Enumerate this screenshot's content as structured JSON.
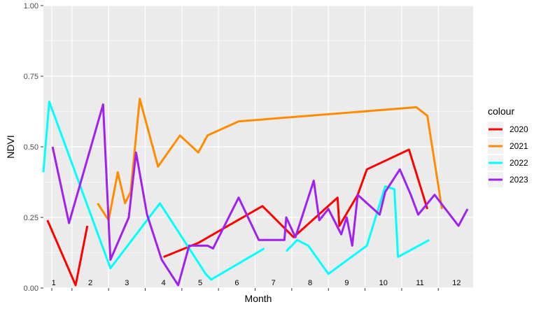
{
  "chart_data": {
    "type": "line",
    "xlabel": "Month",
    "ylabel": "NDVI",
    "ylim": [
      0,
      1
    ],
    "xlim": [
      0.72,
      12.45
    ],
    "yticks": [
      "0.00",
      "0.25",
      "0.50",
      "0.75",
      "1.00"
    ],
    "ytick_values": [
      0,
      0.25,
      0.5,
      0.75,
      1
    ],
    "month_labels": [
      "1",
      "2",
      "3",
      "4",
      "5",
      "6",
      "7",
      "8",
      "9",
      "10",
      "11",
      "12"
    ],
    "grid": true,
    "legend_title": "colour",
    "legend_position": "right",
    "series": [
      {
        "name": "2020",
        "color": "#ff0000",
        "segments": [
          [
            [
              0.83,
              0.24
            ],
            [
              1.6,
              0.01
            ],
            [
              1.92,
              0.22
            ]
          ],
          [
            [
              4.0,
              0.11
            ],
            [
              4.95,
              0.16
            ],
            [
              6.7,
              0.29
            ],
            [
              7.55,
              0.18
            ],
            [
              8.75,
              0.32
            ],
            [
              8.8,
              0.22
            ],
            [
              9.3,
              0.33
            ],
            [
              9.55,
              0.42
            ],
            [
              10.7,
              0.49
            ],
            [
              11.2,
              0.28
            ]
          ]
        ]
      },
      {
        "name": "2021",
        "color": "#ff8c00",
        "segments": [
          [
            [
              2.2,
              0.3
            ],
            [
              2.5,
              0.24
            ],
            [
              2.75,
              0.41
            ],
            [
              2.95,
              0.3
            ],
            [
              3.1,
              0.34
            ],
            [
              3.35,
              0.67
            ],
            [
              3.85,
              0.43
            ],
            [
              4.45,
              0.54
            ],
            [
              4.95,
              0.48
            ],
            [
              5.2,
              0.54
            ],
            [
              6.05,
              0.59
            ],
            [
              10.9,
              0.64
            ],
            [
              11.2,
              0.61
            ],
            [
              11.6,
              0.28
            ]
          ]
        ]
      },
      {
        "name": "2022",
        "color": "#00ffff",
        "segments": [
          [
            [
              0.72,
              0.41
            ],
            [
              0.88,
              0.66
            ],
            [
              2.55,
              0.07
            ],
            [
              3.9,
              0.3
            ],
            [
              5.15,
              0.05
            ],
            [
              5.3,
              0.03
            ],
            [
              6.75,
              0.14
            ]
          ],
          [
            [
              7.35,
              0.13
            ],
            [
              7.65,
              0.17
            ],
            [
              7.95,
              0.15
            ],
            [
              8.5,
              0.05
            ],
            [
              9.55,
              0.15
            ],
            [
              10.05,
              0.36
            ],
            [
              10.3,
              0.35
            ],
            [
              10.4,
              0.11
            ],
            [
              11.25,
              0.17
            ]
          ]
        ]
      },
      {
        "name": "2023",
        "color": "#a020f0",
        "segments": [
          [
            [
              0.97,
              0.5
            ],
            [
              1.42,
              0.23
            ],
            [
              2.35,
              0.65
            ],
            [
              2.55,
              0.1
            ],
            [
              3.05,
              0.25
            ],
            [
              3.25,
              0.48
            ],
            [
              3.55,
              0.26
            ],
            [
              3.95,
              0.1
            ],
            [
              4.4,
              0.01
            ],
            [
              4.7,
              0.15
            ],
            [
              5.2,
              0.15
            ],
            [
              5.35,
              0.14
            ],
            [
              6.05,
              0.32
            ],
            [
              6.6,
              0.17
            ],
            [
              7.3,
              0.17
            ],
            [
              7.35,
              0.25
            ],
            [
              7.6,
              0.18
            ],
            [
              8.1,
              0.38
            ],
            [
              8.25,
              0.24
            ],
            [
              8.5,
              0.28
            ],
            [
              8.85,
              0.19
            ],
            [
              9.0,
              0.25
            ],
            [
              9.15,
              0.15
            ],
            [
              9.3,
              0.33
            ],
            [
              9.9,
              0.26
            ],
            [
              10.05,
              0.34
            ],
            [
              10.45,
              0.42
            ],
            [
              10.75,
              0.33
            ],
            [
              10.95,
              0.26
            ],
            [
              11.4,
              0.33
            ],
            [
              12.05,
              0.22
            ],
            [
              12.3,
              0.28
            ]
          ]
        ]
      }
    ]
  }
}
